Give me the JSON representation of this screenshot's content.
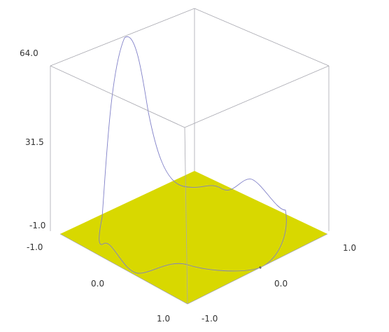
{
  "chart_data": {
    "type": "line",
    "projection": "3d-isometric-box",
    "colors": {
      "box": "#a8a8b0",
      "plane": "#d8d800",
      "curve": "#8080c8",
      "background": "#ffffff"
    },
    "xlim": [
      -1.0,
      1.0
    ],
    "ylim": [
      -1.0,
      1.0
    ],
    "zlim": [
      -1.0,
      64.0
    ],
    "z_ticks": [
      "64.0",
      "31.5",
      "-1.0"
    ],
    "x_ticks": [
      "-1.0",
      "0.0",
      "1.0"
    ],
    "y_ticks": [
      "-1.0",
      "0.0",
      "1.0"
    ],
    "plane": {
      "z": -1.0,
      "label": "reference plane at z = -1.0"
    },
    "series": [
      {
        "approx_peak_z": 63,
        "secondary_peak_z": 14
      }
    ]
  }
}
